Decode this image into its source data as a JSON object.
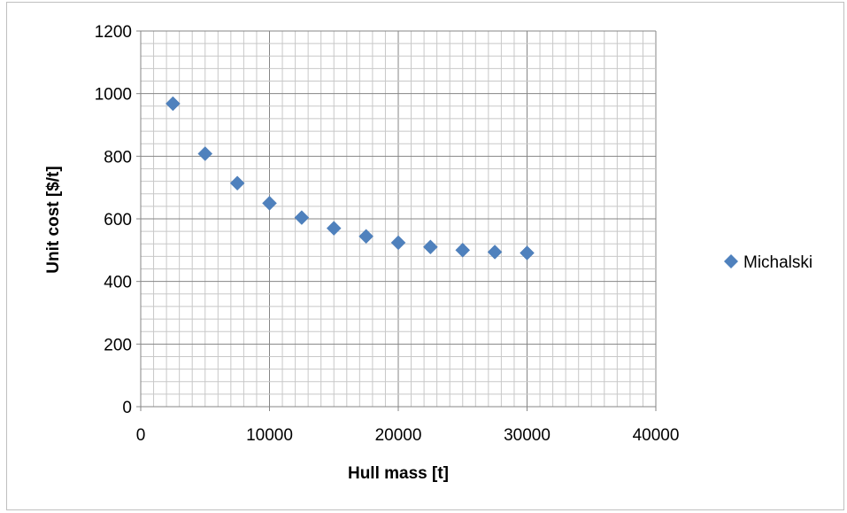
{
  "chart_data": {
    "type": "scatter",
    "title": "",
    "xlabel": "Hull mass [t]",
    "ylabel": "Unit cost [$/t]",
    "xlim": [
      0,
      40000
    ],
    "ylim": [
      0,
      1200
    ],
    "x_ticks": [
      "0",
      "10000",
      "20000",
      "30000",
      "40000"
    ],
    "y_ticks": [
      "0",
      "200",
      "400",
      "600",
      "800",
      "1000",
      "1200"
    ],
    "grid": true,
    "legend_position": "right",
    "marker": "diamond",
    "color": "#4f81bd",
    "series": [
      {
        "name": "Michalski",
        "x": [
          2500,
          5000,
          7500,
          10000,
          12500,
          15000,
          17500,
          20000,
          22500,
          25000,
          27500,
          30000
        ],
        "y": [
          968,
          808,
          714,
          650,
          604,
          570,
          544,
          524,
          510,
          500,
          494,
          491
        ]
      }
    ]
  }
}
